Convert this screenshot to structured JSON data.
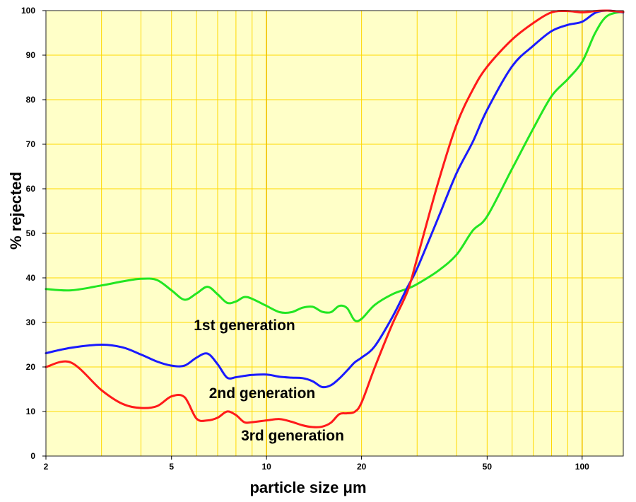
{
  "chart_data": {
    "type": "line",
    "xlabel": "particle size μm",
    "ylabel": "% rejected",
    "x_scale": "log",
    "xlim": [
      2,
      135
    ],
    "ylim": [
      0,
      100
    ],
    "x_ticks": [
      {
        "value": 2,
        "label": "2"
      },
      {
        "value": 5,
        "label": "5"
      },
      {
        "value": 10,
        "label": "10"
      },
      {
        "value": 20,
        "label": "20"
      },
      {
        "value": 50,
        "label": "50"
      },
      {
        "value": 100,
        "label": "100"
      }
    ],
    "y_ticks": [
      0,
      10,
      20,
      30,
      40,
      50,
      60,
      70,
      80,
      90,
      100
    ],
    "grid": true,
    "plot_background": "#ffffc8",
    "grid_color": "#ffd800",
    "series": [
      {
        "name": "1st generation",
        "color": "#22e622",
        "x": [
          2,
          2.4,
          3,
          3.5,
          4,
          4.5,
          5,
          5.5,
          6,
          6.5,
          7,
          7.5,
          8,
          8.5,
          9,
          10,
          11,
          12,
          13,
          14,
          15,
          16,
          17,
          18,
          19,
          20,
          22,
          25,
          28,
          30,
          35,
          40,
          45,
          50,
          60,
          70,
          80,
          90,
          100,
          110,
          120,
          135
        ],
        "y": [
          37.5,
          37.2,
          38.3,
          39.2,
          39.8,
          39.5,
          37.2,
          35.1,
          36.5,
          38,
          36.3,
          34.4,
          34.7,
          35.7,
          35.3,
          33.7,
          32.3,
          32.3,
          33.3,
          33.5,
          32.4,
          32.3,
          33.7,
          33.2,
          30.5,
          30.8,
          33.9,
          36.3,
          37.6,
          38.6,
          41.6,
          45.2,
          50.6,
          53.8,
          64.5,
          73.5,
          80.8,
          84.6,
          88.5,
          95,
          98.8,
          99.8
        ]
      },
      {
        "name": "2nd generation",
        "color": "#1a1aff",
        "x": [
          2,
          2.4,
          3,
          3.5,
          4,
          4.5,
          5,
          5.5,
          6,
          6.5,
          7,
          7.5,
          8,
          8.5,
          9,
          10,
          11,
          12,
          13,
          14,
          15,
          16,
          17,
          18,
          19,
          20,
          22,
          25,
          28,
          30,
          35,
          40,
          45,
          50,
          60,
          70,
          80,
          90,
          100,
          110,
          120,
          135
        ],
        "y": [
          23.1,
          24.3,
          25,
          24.4,
          22.8,
          21.2,
          20.3,
          20.3,
          22.1,
          23,
          20.6,
          17.6,
          17.7,
          18,
          18.2,
          18.3,
          17.8,
          17.6,
          17.5,
          16.8,
          15.5,
          15.9,
          17.4,
          19.2,
          21,
          22.1,
          24.6,
          31.1,
          38,
          42.1,
          53.5,
          63.5,
          70.5,
          77.7,
          87.5,
          92.1,
          95.4,
          96.8,
          97.5,
          99.5,
          100,
          99.6
        ]
      },
      {
        "name": "3rd generation",
        "color": "#ff1a1a",
        "x": [
          2,
          2.4,
          3,
          3.5,
          4,
          4.5,
          5,
          5.5,
          6,
          6.5,
          7,
          7.5,
          8,
          8.5,
          9,
          10,
          11,
          12,
          13,
          14,
          15,
          16,
          17,
          18,
          19,
          20,
          22,
          25,
          28,
          30,
          35,
          40,
          45,
          50,
          60,
          70,
          80,
          90,
          100,
          110,
          120,
          135
        ],
        "y": [
          20,
          21,
          14.8,
          11.7,
          10.8,
          11.2,
          13.4,
          13.2,
          8.4,
          8,
          8.6,
          10,
          9.2,
          7.6,
          7.6,
          8,
          8.3,
          7.7,
          6.9,
          6.5,
          6.6,
          7.5,
          9.4,
          9.6,
          9.9,
          12,
          19.8,
          29.5,
          37.1,
          44.4,
          61.5,
          74.4,
          82.2,
          87.4,
          93.5,
          97.2,
          99.6,
          99.9,
          99.6,
          99.9,
          100,
          99.7
        ]
      }
    ]
  }
}
